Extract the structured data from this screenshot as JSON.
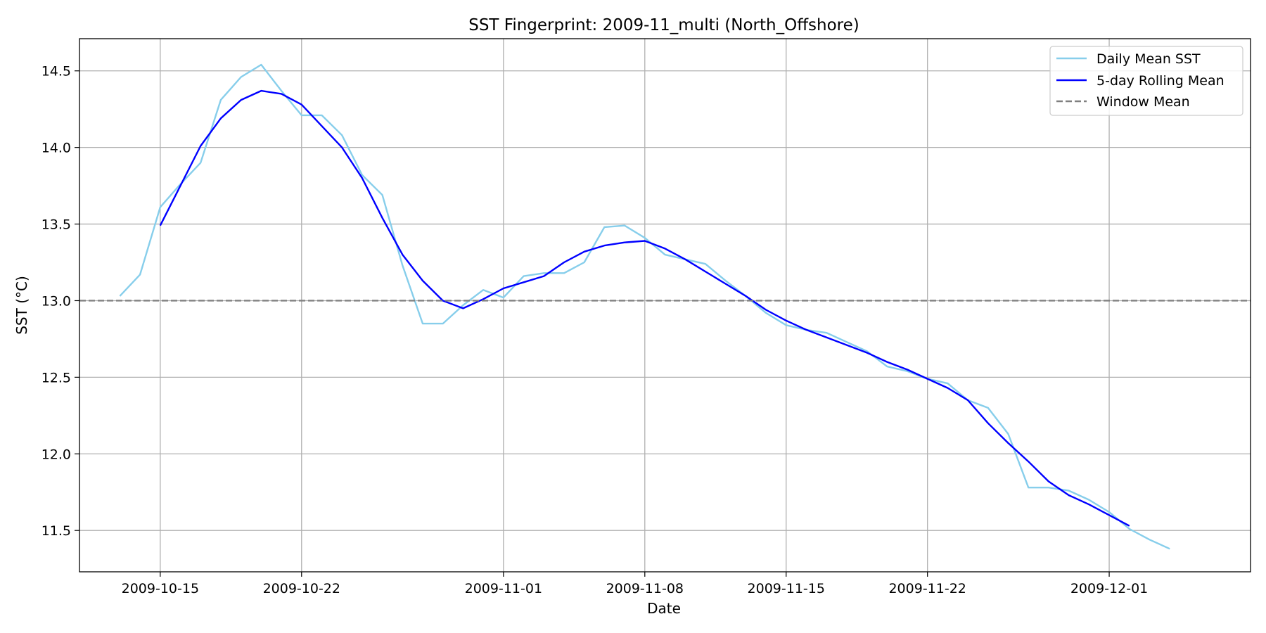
{
  "chart_data": {
    "type": "line",
    "title": "SST Fingerprint: 2009-11_multi (North_Offshore)",
    "xlabel": "Date",
    "ylabel": "SST (°C)",
    "xlim": [
      "2009-10-11",
      "2009-12-08"
    ],
    "ylim": [
      11.23,
      14.71
    ],
    "grid": true,
    "legend_position": "top-right",
    "x_ticks": [
      "2009-10-15",
      "2009-10-22",
      "2009-11-01",
      "2009-11-08",
      "2009-11-15",
      "2009-11-22",
      "2009-12-01"
    ],
    "y_ticks": [
      "11.5",
      "12.0",
      "12.5",
      "13.0",
      "13.5",
      "14.0",
      "14.5"
    ],
    "series": [
      {
        "name": "Daily Mean SST",
        "color": "#87ceeb",
        "style": "solid",
        "x": [
          "2009-10-13",
          "2009-10-14",
          "2009-10-15",
          "2009-10-16",
          "2009-10-17",
          "2009-10-18",
          "2009-10-19",
          "2009-10-20",
          "2009-10-21",
          "2009-10-22",
          "2009-10-23",
          "2009-10-24",
          "2009-10-25",
          "2009-10-26",
          "2009-10-27",
          "2009-10-28",
          "2009-10-29",
          "2009-10-30",
          "2009-10-31",
          "2009-11-01",
          "2009-11-02",
          "2009-11-03",
          "2009-11-04",
          "2009-11-05",
          "2009-11-06",
          "2009-11-07",
          "2009-11-08",
          "2009-11-09",
          "2009-11-10",
          "2009-11-11",
          "2009-11-12",
          "2009-11-13",
          "2009-11-14",
          "2009-11-15",
          "2009-11-16",
          "2009-11-17",
          "2009-11-18",
          "2009-11-19",
          "2009-11-20",
          "2009-11-21",
          "2009-11-22",
          "2009-11-23",
          "2009-11-24",
          "2009-11-25",
          "2009-11-26",
          "2009-11-27",
          "2009-11-28",
          "2009-11-29",
          "2009-11-30",
          "2009-12-01",
          "2009-12-02",
          "2009-12-03",
          "2009-12-04"
        ],
        "values": [
          13.03,
          13.17,
          13.61,
          13.76,
          13.9,
          14.31,
          14.46,
          14.54,
          14.37,
          14.21,
          14.21,
          14.08,
          13.82,
          13.69,
          13.23,
          12.85,
          12.85,
          12.97,
          13.07,
          13.02,
          13.16,
          13.18,
          13.18,
          13.25,
          13.48,
          13.49,
          13.41,
          13.3,
          13.27,
          13.24,
          13.13,
          13.03,
          12.92,
          12.84,
          12.81,
          12.79,
          12.73,
          12.67,
          12.57,
          12.54,
          12.49,
          12.46,
          12.35,
          12.3,
          12.13,
          11.78,
          11.78,
          11.76,
          11.7,
          11.62,
          11.51,
          11.44,
          11.38
        ]
      },
      {
        "name": "5-day Rolling Mean",
        "color": "#0000ff",
        "style": "solid",
        "x": [
          "2009-10-15",
          "2009-10-16",
          "2009-10-17",
          "2009-10-18",
          "2009-10-19",
          "2009-10-20",
          "2009-10-21",
          "2009-10-22",
          "2009-10-23",
          "2009-10-24",
          "2009-10-25",
          "2009-10-26",
          "2009-10-27",
          "2009-10-28",
          "2009-10-29",
          "2009-10-30",
          "2009-10-31",
          "2009-11-01",
          "2009-11-02",
          "2009-11-03",
          "2009-11-04",
          "2009-11-05",
          "2009-11-06",
          "2009-11-07",
          "2009-11-08",
          "2009-11-09",
          "2009-11-10",
          "2009-11-11",
          "2009-11-12",
          "2009-11-13",
          "2009-11-14",
          "2009-11-15",
          "2009-11-16",
          "2009-11-17",
          "2009-11-18",
          "2009-11-19",
          "2009-11-20",
          "2009-11-21",
          "2009-11-22",
          "2009-11-23",
          "2009-11-24",
          "2009-11-25",
          "2009-11-26",
          "2009-11-27",
          "2009-11-28",
          "2009-11-29",
          "2009-11-30",
          "2009-12-01",
          "2009-12-02"
        ],
        "values": [
          13.49,
          13.75,
          14.01,
          14.19,
          14.31,
          14.37,
          14.35,
          14.28,
          14.14,
          14.0,
          13.8,
          13.54,
          13.3,
          13.13,
          13.0,
          12.95,
          13.01,
          13.08,
          13.12,
          13.16,
          13.25,
          13.32,
          13.36,
          13.38,
          13.39,
          13.34,
          13.27,
          13.19,
          13.11,
          13.03,
          12.94,
          12.87,
          12.81,
          12.76,
          12.71,
          12.66,
          12.6,
          12.55,
          12.49,
          12.43,
          12.35,
          12.2,
          12.07,
          11.95,
          11.82,
          11.73,
          11.67,
          11.6,
          11.53
        ]
      },
      {
        "name": "Window Mean",
        "color": "#808080",
        "style": "dashed",
        "constant": 13.0
      }
    ]
  }
}
